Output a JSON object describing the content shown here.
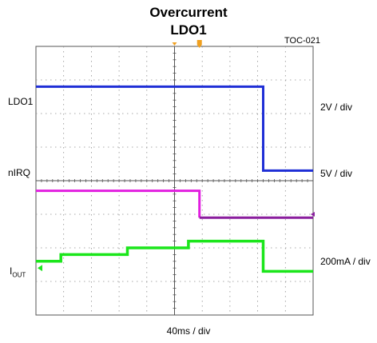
{
  "title": [
    "Overcurrent",
    "LDO1"
  ],
  "figure_id": "TOC-021",
  "colors": {
    "ldo1": "#1f2fd6",
    "nirq": "#e21ee0",
    "nirq_low": "#8a1e9e",
    "iout": "#1be61b",
    "grid": "#8f8f8f",
    "frame": "#555555"
  },
  "chart_data": {
    "type": "line",
    "title": "Overcurrent LDO1",
    "time_scale": "40ms / div",
    "x_divisions": 10,
    "y_divisions": 8,
    "trigger_position_div": 5.9,
    "series": [
      {
        "name": "LDO1",
        "scale": "2V / div",
        "x_div": [
          0,
          8.2,
          8.2,
          10
        ],
        "y_div": [
          6.8,
          6.8,
          4.3,
          4.3
        ]
      },
      {
        "name": "nIRQ",
        "scale": "5V / div",
        "x_div": [
          0,
          5.9,
          5.9,
          10
        ],
        "y_div": [
          3.7,
          3.7,
          2.9,
          2.9
        ]
      },
      {
        "name_main": "I",
        "name_sub": "OUT",
        "scale": "200mA / div",
        "x_div": [
          0,
          0.9,
          0.9,
          3.3,
          3.3,
          5.5,
          5.5,
          8.2,
          8.2,
          10
        ],
        "y_div": [
          1.6,
          1.6,
          1.8,
          1.8,
          2.0,
          2.0,
          2.2,
          2.2,
          1.3,
          1.3
        ]
      }
    ]
  }
}
